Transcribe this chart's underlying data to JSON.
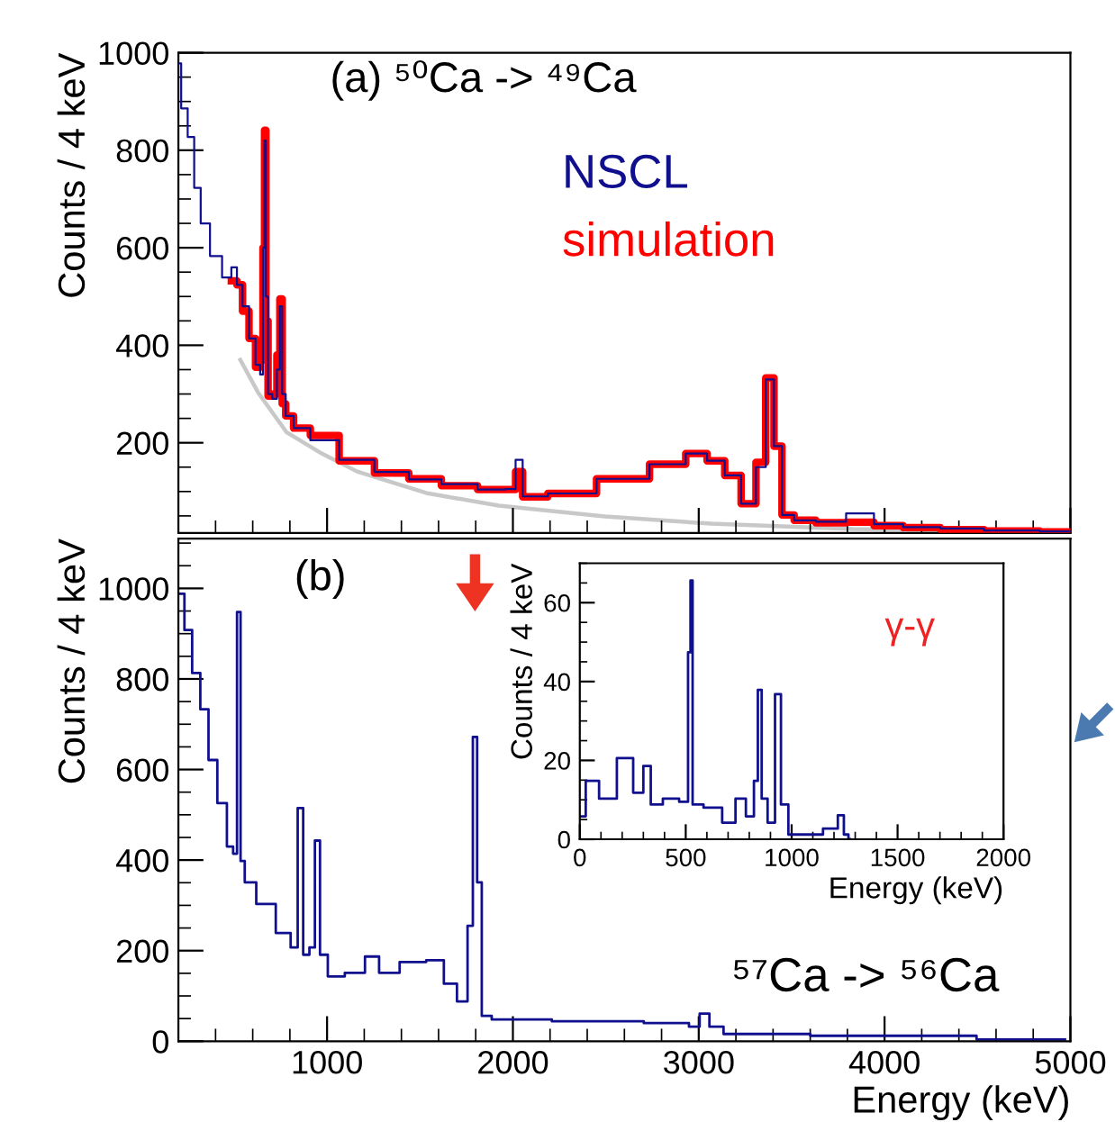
{
  "chart_data": [
    {
      "type": "step",
      "ylabel": "Counts / 4 keV",
      "annotations": [
        "(a) ⁵⁰Ca -> ⁴⁹Ca"
      ],
      "legend": "top",
      "tick_labels": "y",
      "xlim": [
        200,
        5000
      ],
      "xticks": [
        1000,
        2000,
        3000,
        4000,
        5000
      ],
      "ylim": [
        15,
        1000
      ],
      "yticks": [
        200,
        400,
        600,
        800,
        1000
      ],
      "x": [
        200,
        230,
        270,
        300,
        340,
        400,
        470,
        500,
        530,
        560,
        600,
        630,
        650,
        660,
        667,
        675,
        690,
        720,
        740,
        752,
        765,
        790,
        850,
        970,
        1160,
        1350,
        1530,
        1700,
        1920,
        2000,
        2029,
        2076,
        2300,
        2600,
        2870,
        2990,
        3100,
        3180,
        3276,
        3340,
        3381,
        3429,
        3467,
        3560,
        3700,
        3886,
        4000,
        4200,
        4400,
        4670,
        5000
      ],
      "series": [
        {
          "name": "NSCL",
          "color": "#10108f",
          "values": [
            978,
            886,
            827,
            723,
            650,
            583,
            539,
            560,
            524,
            480,
            414,
            360,
            340,
            600,
            820,
            500,
            300,
            290,
            350,
            480,
            300,
            255,
            230,
            205,
            165,
            140,
            125,
            115,
            104,
            105,
            165,
            90,
            96,
            126,
            156,
            178,
            163,
            133,
            75,
            150,
            330,
            193,
            52,
            41,
            38,
            55,
            33,
            27,
            24,
            20,
            18
          ]
        },
        {
          "name": "simulation",
          "color": "#ff0000",
          "values": [
            null,
            null,
            null,
            null,
            null,
            null,
            null,
            532,
            524,
            470,
            414,
            355,
            370,
            600,
            841,
            450,
            296,
            300,
            380,
            495,
            280,
            255,
            230,
            215,
            163,
            138,
            126,
            112,
            104,
            104,
            141,
            89,
            96,
            126,
            156,
            178,
            163,
            133,
            75,
            160,
            333,
            193,
            52,
            41,
            36,
            37,
            30,
            26,
            22,
            19,
            17
          ]
        },
        {
          "type": "line",
          "color": "#c8c8c8",
          "x": [
            533,
            629,
            781,
            971,
            1162,
            1533,
            1924,
            2495,
            3067,
            3829,
            5000
          ],
          "values": [
            370,
            303,
            222,
            178,
            141,
            97,
            71,
            49,
            34,
            23,
            16
          ]
        }
      ]
    },
    {
      "type": "step",
      "xlabel": "Energy (keV)",
      "ylabel": "Counts / 4 keV",
      "annotations": [
        "(b)",
        "⁵⁷Ca -> ⁵⁶Ca"
      ],
      "xlim": [
        200,
        5000
      ],
      "xticks": [
        1000,
        2000,
        3000,
        4000,
        5000
      ],
      "ylim": [
        0,
        1110
      ],
      "yticks": [
        0,
        200,
        400,
        600,
        800,
        1000
      ],
      "color": "#10108f",
      "x": [
        210,
        255,
        293,
        343,
        381,
        438,
        484,
        505,
        526,
        543,
        571,
        667,
        781,
        827,
        857,
        886,
        924,
        945,
        979,
        1029,
        1162,
        1246,
        1314,
        1467,
        1600,
        1657,
        1741,
        1771,
        1798,
        1817,
        1848,
        1924,
        2495,
        2914,
        2981,
        3029,
        3086,
        3181,
        4019,
        4971
      ],
      "values": [
        988,
        908,
        813,
        733,
        621,
        526,
        430,
        414,
        948,
        398,
        351,
        303,
        239,
        207,
        515,
        191,
        207,
        443,
        191,
        143,
        151,
        187,
        151,
        175,
        179,
        127,
        88,
        255,
        672,
        351,
        56,
        48,
        44,
        40,
        32,
        61,
        32,
        16,
        12,
        4
      ]
    },
    {
      "type": "step",
      "xlabel": "Energy (keV)",
      "ylabel": "Counts / 4 keV",
      "annotations": [
        "γ-γ"
      ],
      "xlim": [
        0,
        2000
      ],
      "xticks": [
        0,
        500,
        1000,
        1500,
        2000
      ],
      "ylim": [
        0,
        70
      ],
      "yticks": [
        0,
        20,
        40,
        60
      ],
      "color": "#10108f",
      "x": [
        0,
        56,
        126,
        224,
        280,
        320,
        350,
        434,
        504,
        518,
        527,
        538,
        630,
        714,
        756,
        812,
        832,
        849,
        868,
        905,
        938,
        961,
        1008,
        1092,
        1204,
        1232,
        1261,
        1275
      ],
      "values": [
        5.8,
        14.8,
        10.3,
        20.6,
        11.8,
        18.6,
        8.8,
        10.3,
        9.5,
        47.4,
        65.6,
        8.8,
        8.0,
        4.2,
        10.3,
        5.8,
        14.8,
        37.9,
        10.3,
        4.2,
        36.8,
        8.8,
        1.2,
        1.2,
        2.7,
        6.1,
        1.2,
        0
      ]
    }
  ]
}
